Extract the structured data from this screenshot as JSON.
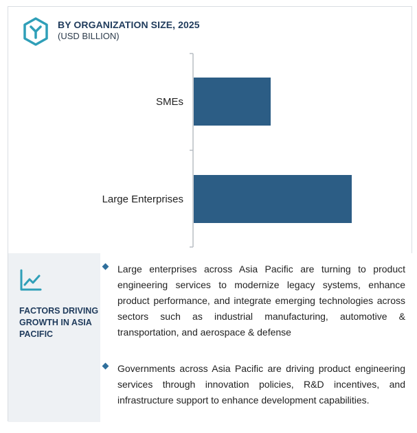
{
  "header": {
    "title": "BY ORGANIZATION SIZE, 2025",
    "subtitle": "(USD BILLION)",
    "logo_icon": "hexagon-y-logo-icon",
    "accent_color": "#2f9fb8"
  },
  "chart_data": {
    "type": "bar",
    "orientation": "horizontal",
    "categories": [
      "SMEs",
      "Large Enterprises"
    ],
    "values": [
      112,
      230
    ],
    "bar_color": "#2c5d85",
    "axis_labels_visible": false,
    "grid": false
  },
  "factors": {
    "icon": "trend-chart-icon",
    "title": "FACTORS DRIVING GROWTH IN ASIA PACIFIC",
    "bullets": [
      "Large enterprises across Asia Pacific are turning to product engineering services to modernize legacy systems, enhance product performance, and integrate emerging technologies across sectors such as industrial manufacturing, automotive & transportation, and aerospace & defense",
      "Governments across Asia Pacific are driving product engineering services through innovation policies, R&D incentives, and infrastructure support to enhance development capabilities."
    ]
  }
}
